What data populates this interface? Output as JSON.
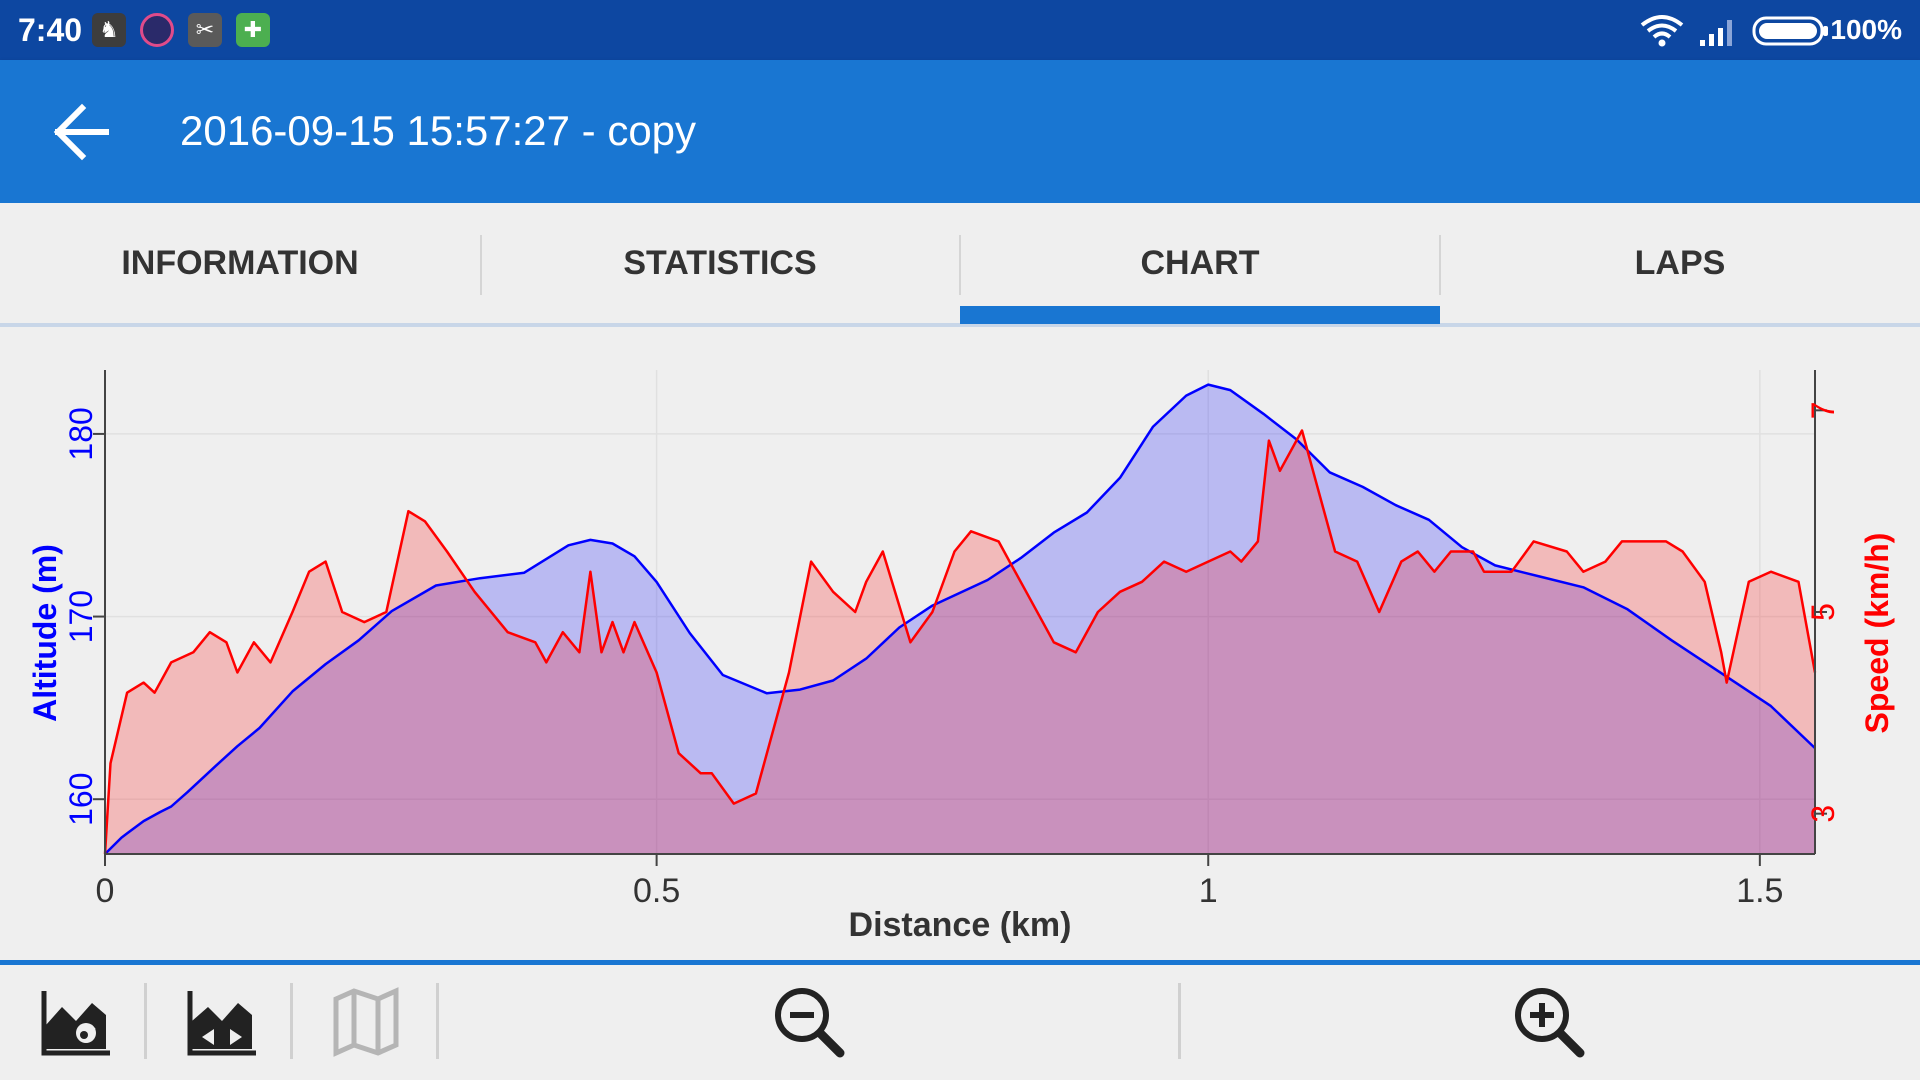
{
  "status_bar": {
    "time": "7:40",
    "battery": "100%",
    "icons": [
      "llama-app-icon",
      "clock-app-icon",
      "scissors-app-icon",
      "puzzle-app-icon",
      "wifi-icon",
      "signal-icon",
      "battery-icon"
    ]
  },
  "app_bar": {
    "title": "2016-09-15 15:57:27 - copy",
    "back_icon": "arrow-left-icon"
  },
  "tabs": [
    {
      "label": "INFORMATION",
      "selected": false
    },
    {
      "label": "STATISTICS",
      "selected": false
    },
    {
      "label": "CHART",
      "selected": true
    },
    {
      "label": "LAPS",
      "selected": false
    }
  ],
  "colors": {
    "primary": "#1976d2",
    "status_bar": "#0d47a1",
    "altitude": "#0000ff",
    "speed": "#ff0000"
  },
  "chart_data": {
    "type": "area",
    "xlabel": "Distance (km)",
    "ylabel": "Altitude (m)",
    "y2label": "Speed (km/h)",
    "xlim": [
      0,
      1.55
    ],
    "ylim": [
      157,
      183.5
    ],
    "y2lim": [
      2.6,
      7.4
    ],
    "x_ticks": [
      "0",
      "0.5",
      "1",
      "1.5"
    ],
    "x_tick_values": [
      0,
      0.5,
      1,
      1.5
    ],
    "y_ticks": [
      "160",
      "170",
      "180"
    ],
    "y_tick_values": [
      160,
      170,
      180
    ],
    "y2_ticks": [
      "3",
      "5",
      "7"
    ],
    "y2_tick_values": [
      3,
      5,
      7
    ],
    "grid": true,
    "series": [
      {
        "name": "Altitude (m)",
        "axis": "left",
        "color": "#0000ff",
        "x": [
          0,
          0.015,
          0.035,
          0.05,
          0.06,
          0.075,
          0.1,
          0.12,
          0.14,
          0.17,
          0.2,
          0.23,
          0.26,
          0.3,
          0.34,
          0.38,
          0.42,
          0.44,
          0.46,
          0.48,
          0.5,
          0.53,
          0.56,
          0.6,
          0.63,
          0.66,
          0.69,
          0.72,
          0.75,
          0.8,
          0.83,
          0.86,
          0.89,
          0.92,
          0.95,
          0.98,
          1.0,
          1.02,
          1.05,
          1.08,
          1.11,
          1.14,
          1.17,
          1.2,
          1.23,
          1.26,
          1.3,
          1.34,
          1.38,
          1.42,
          1.45,
          1.48,
          1.51,
          1.55
        ],
        "y": [
          157,
          157.9,
          158.8,
          159.3,
          159.6,
          160.4,
          161.8,
          162.9,
          163.9,
          165.9,
          167.4,
          168.7,
          170.3,
          171.7,
          172.1,
          172.4,
          173.9,
          174.2,
          174.0,
          173.3,
          171.9,
          169.1,
          166.8,
          165.8,
          166.0,
          166.5,
          167.7,
          169.4,
          170.6,
          172.0,
          173.2,
          174.6,
          175.7,
          177.6,
          180.4,
          182.1,
          182.7,
          182.4,
          181.1,
          179.7,
          177.9,
          177.1,
          176.1,
          175.3,
          173.8,
          172.8,
          172.2,
          171.6,
          170.4,
          168.7,
          167.5,
          166.3,
          165.1,
          162.8
        ]
      },
      {
        "name": "Speed (km/h)",
        "axis": "right",
        "color": "#ff0000",
        "x": [
          0,
          0.005,
          0.02,
          0.035,
          0.045,
          0.06,
          0.08,
          0.095,
          0.11,
          0.12,
          0.135,
          0.15,
          0.17,
          0.185,
          0.2,
          0.215,
          0.235,
          0.255,
          0.275,
          0.29,
          0.31,
          0.335,
          0.365,
          0.39,
          0.4,
          0.415,
          0.43,
          0.44,
          0.45,
          0.46,
          0.47,
          0.48,
          0.5,
          0.52,
          0.54,
          0.55,
          0.57,
          0.59,
          0.62,
          0.64,
          0.66,
          0.68,
          0.69,
          0.705,
          0.73,
          0.75,
          0.77,
          0.785,
          0.81,
          0.82,
          0.835,
          0.86,
          0.88,
          0.9,
          0.92,
          0.94,
          0.96,
          0.98,
          1.0,
          1.02,
          1.03,
          1.045,
          1.055,
          1.065,
          1.085,
          1.095,
          1.115,
          1.135,
          1.155,
          1.175,
          1.19,
          1.205,
          1.22,
          1.24,
          1.25,
          1.26,
          1.275,
          1.295,
          1.325,
          1.34,
          1.36,
          1.375,
          1.395,
          1.415,
          1.43,
          1.45,
          1.465,
          1.47,
          1.49,
          1.51,
          1.535,
          1.55
        ],
        "y": [
          2.6,
          3.5,
          4.2,
          4.3,
          4.2,
          4.5,
          4.6,
          4.8,
          4.7,
          4.4,
          4.7,
          4.5,
          5.0,
          5.4,
          5.5,
          5.0,
          4.9,
          5.0,
          6.0,
          5.9,
          5.6,
          5.2,
          4.8,
          4.7,
          4.5,
          4.8,
          4.6,
          5.4,
          4.6,
          4.9,
          4.6,
          4.9,
          4.4,
          3.6,
          3.4,
          3.4,
          3.1,
          3.2,
          4.4,
          5.5,
          5.2,
          5.0,
          5.3,
          5.6,
          4.7,
          5.0,
          5.6,
          5.8,
          5.7,
          5.5,
          5.2,
          4.7,
          4.6,
          5.0,
          5.2,
          5.3,
          5.5,
          5.4,
          5.5,
          5.6,
          5.5,
          5.7,
          6.7,
          6.4,
          6.8,
          6.4,
          5.6,
          5.5,
          5.0,
          5.5,
          5.6,
          5.4,
          5.6,
          5.6,
          5.4,
          5.4,
          5.4,
          5.7,
          5.6,
          5.4,
          5.5,
          5.7,
          5.7,
          5.7,
          5.6,
          5.3,
          4.6,
          4.3,
          5.3,
          5.4,
          5.3,
          4.4
        ]
      }
    ]
  },
  "toolbar": {
    "buttons": [
      {
        "name": "chart-settings-icon",
        "enabled": true
      },
      {
        "name": "chart-compare-icon",
        "enabled": true
      },
      {
        "name": "map-icon",
        "enabled": false
      },
      {
        "name": "zoom-out-icon",
        "enabled": true
      },
      {
        "name": "zoom-in-icon",
        "enabled": true
      }
    ]
  }
}
